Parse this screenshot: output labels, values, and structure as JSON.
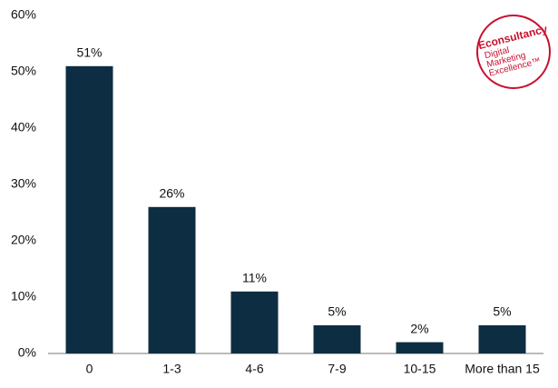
{
  "chart_data": {
    "type": "bar",
    "categories": [
      "0",
      "1-3",
      "4-6",
      "7-9",
      "10-15",
      "More than 15"
    ],
    "values": [
      51,
      26,
      11,
      5,
      2,
      5
    ],
    "value_labels": [
      "51%",
      "26%",
      "11%",
      "5%",
      "2%",
      "5%"
    ],
    "color": "#0d2e42",
    "ylim": [
      0,
      60
    ],
    "yticks": [
      {
        "value": 0,
        "label": "0%"
      },
      {
        "value": 10,
        "label": "10%"
      },
      {
        "value": 20,
        "label": "20%"
      },
      {
        "value": 30,
        "label": "30%"
      },
      {
        "value": 40,
        "label": "40%"
      },
      {
        "value": 50,
        "label": "50%"
      },
      {
        "value": 60,
        "label": "60%"
      }
    ],
    "grid": false
  },
  "logo": {
    "name": "Econsultancy",
    "tagline": [
      "Digital",
      "Marketing",
      "Excellence™"
    ]
  }
}
